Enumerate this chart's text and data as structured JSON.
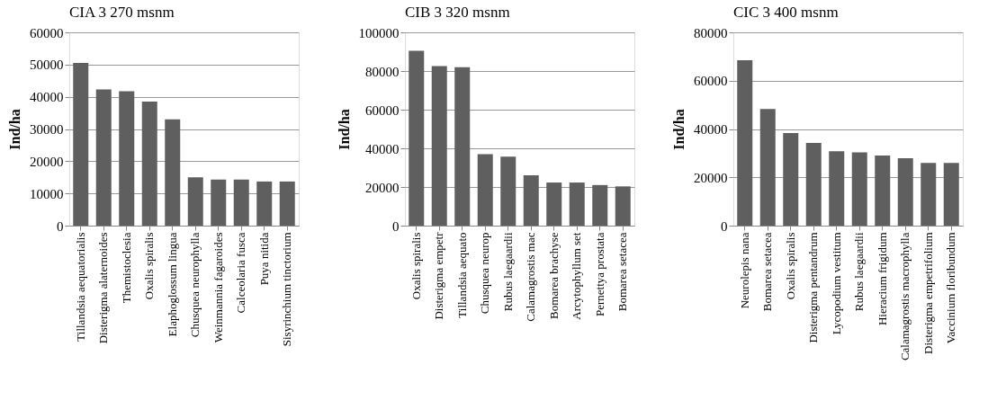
{
  "chart_data": [
    {
      "type": "bar",
      "title": "CIA 3 270 msnm",
      "ylabel": "Ind/ha",
      "categories": [
        "Tillandsia aequatorialis",
        "Disterigma alaternoides",
        "Themistoclesia",
        "Oxalis spiralis",
        "Elaphoglossum lingua",
        "Chusquea neurophylla",
        "Weinmannia fagaroides",
        "Calceolaria fusca",
        "Puya nitida",
        "Sisyrinchium tinctorium"
      ],
      "values": [
        50500,
        42300,
        41700,
        38500,
        33000,
        15000,
        14300,
        14300,
        13700,
        13700
      ],
      "color": "#5f5f5f",
      "ylim": [
        0,
        60000
      ],
      "yticks": [
        0,
        10000,
        20000,
        30000,
        40000,
        50000,
        60000
      ],
      "grid": "y"
    },
    {
      "type": "bar",
      "title": "CIB 3 320 msnm",
      "ylabel": "Ind/ha",
      "categories": [
        "Oxalis spiralis",
        "Disterigma empetr",
        "Tillandsia aequato",
        "Chusquea neurop",
        "Rubus laegaardii",
        "Calamagrostis mac",
        "Bomarea brachyse",
        "Arcytophyllum set",
        "Pernettya prostata",
        "Bomarea setacea"
      ],
      "values": [
        90500,
        82600,
        82000,
        37000,
        35700,
        26000,
        22300,
        22300,
        21000,
        20300
      ],
      "color": "#5f5f5f",
      "ylim": [
        0,
        100000
      ],
      "yticks": [
        0,
        20000,
        40000,
        60000,
        80000,
        100000
      ],
      "grid": "y"
    },
    {
      "type": "bar",
      "title": "CIC 3 400 msnm",
      "ylabel": "Ind/ha",
      "categories": [
        "Neurolepis nana",
        "Bomarea setacea",
        "Oxalis spiralis",
        "Disterigma pentandrum",
        "Lycopodium vestitum",
        "Rubus laegaardii",
        "Hieracium frigidum",
        "Calamagrostis macrophylla",
        "Disterigma empetrifolium",
        "Vaccinium floribundum"
      ],
      "values": [
        68500,
        48300,
        38300,
        34200,
        30800,
        30300,
        29000,
        27900,
        26000,
        26000
      ],
      "color": "#5f5f5f",
      "ylim": [
        0,
        80000
      ],
      "yticks": [
        0,
        20000,
        40000,
        60000,
        80000
      ],
      "grid": "y"
    }
  ]
}
